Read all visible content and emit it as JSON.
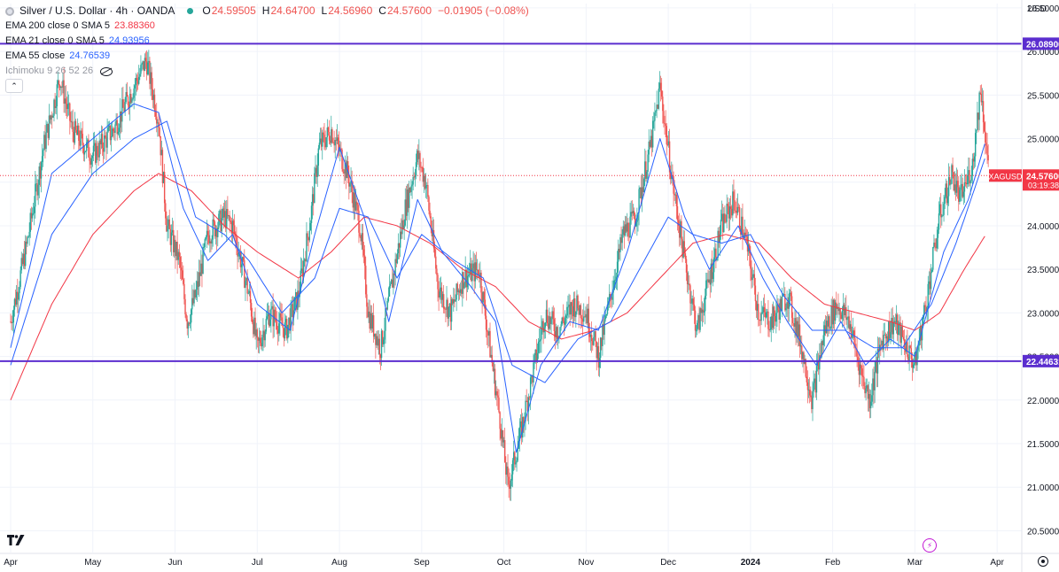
{
  "header": {
    "title": "Silver / U.S. Dollar · 4h · OANDA",
    "ohlc": [
      {
        "k": "O",
        "v": "24.59505"
      },
      {
        "k": "H",
        "v": "24.64700"
      },
      {
        "k": "L",
        "v": "24.56960"
      },
      {
        "k": "C",
        "v": "24.57600"
      },
      {
        "k": "",
        "v": "−0.01905 (−0.08%)"
      }
    ],
    "indicators": [
      {
        "label": "EMA 200 close 0 SMA 5",
        "value": "23.88360",
        "color": "#f23645"
      },
      {
        "label": "EMA 21 close 0 SMA 5",
        "value": "24.93956",
        "color": "#2962ff"
      },
      {
        "label": "EMA 55 close",
        "value": "24.76539",
        "color": "#2962ff"
      }
    ],
    "ichimoku": "Ichimoku 9 26 52 26",
    "collapse_icon": "chevron-up-icon"
  },
  "currency": "USD",
  "colors": {
    "up": "#26a69a",
    "down": "#ef5350",
    "ema200": "#f23645",
    "ema_fast": "#2962ff",
    "hline": "#5b2ecf",
    "price_tag": "#f23645",
    "grid": "#f0f3fa"
  },
  "chart_data": {
    "type": "candlestick",
    "symbol": "XAGUSD",
    "interval": "4h",
    "ylim": [
      20.25,
      26.55
    ],
    "y_ticks": [
      "26.50000",
      "26.00000",
      "25.50000",
      "25.00000",
      "24.50000",
      "24.00000",
      "23.50000",
      "23.00000",
      "22.50000",
      "22.00000",
      "21.50000",
      "21.00000",
      "20.50000"
    ],
    "x_ticks": [
      "Apr",
      "May",
      "Jun",
      "Jul",
      "Aug",
      "Sep",
      "Oct",
      "Nov",
      "Dec",
      "2024",
      "Feb",
      "Mar",
      "Apr"
    ],
    "horizontal_lines": [
      {
        "value": 26.089,
        "label": "26.08900"
      },
      {
        "value": 22.44631,
        "label": "22.44631"
      }
    ],
    "last_price": {
      "value": 24.576,
      "symbol_label": "XAGUSD",
      "price_label": "24.57600",
      "countdown": "03:19:38"
    },
    "close_path": [
      [
        0,
        22.9
      ],
      [
        0.4,
        23.8
      ],
      [
        0.8,
        24.9
      ],
      [
        1.2,
        25.7
      ],
      [
        1.5,
        25.1
      ],
      [
        2.0,
        24.8
      ],
      [
        2.5,
        25.1
      ],
      [
        3.0,
        25.6
      ],
      [
        3.3,
        25.9
      ],
      [
        3.6,
        25.2
      ],
      [
        3.8,
        24.0
      ],
      [
        4.1,
        23.6
      ],
      [
        4.3,
        22.9
      ],
      [
        4.5,
        23.2
      ],
      [
        4.8,
        23.9
      ],
      [
        5.2,
        24.1
      ],
      [
        5.4,
        24.0
      ],
      [
        5.6,
        23.6
      ],
      [
        5.8,
        23.2
      ],
      [
        6.0,
        22.6
      ],
      [
        6.3,
        23.0
      ],
      [
        6.7,
        22.8
      ],
      [
        7.0,
        23.2
      ],
      [
        7.3,
        24.1
      ],
      [
        7.5,
        24.9
      ],
      [
        7.8,
        25.1
      ],
      [
        8.2,
        24.6
      ],
      [
        8.5,
        24.0
      ],
      [
        8.7,
        23.0
      ],
      [
        9.0,
        22.6
      ],
      [
        9.3,
        23.4
      ],
      [
        9.6,
        24.2
      ],
      [
        9.9,
        24.8
      ],
      [
        10.1,
        24.5
      ],
      [
        10.4,
        23.3
      ],
      [
        10.7,
        23.0
      ],
      [
        11.0,
        23.4
      ],
      [
        11.4,
        23.5
      ],
      [
        11.6,
        22.8
      ],
      [
        11.9,
        21.8
      ],
      [
        12.1,
        21.0
      ],
      [
        12.4,
        21.6
      ],
      [
        12.7,
        22.3
      ],
      [
        13.0,
        23.0
      ],
      [
        13.3,
        22.8
      ],
      [
        13.7,
        23.1
      ],
      [
        14.0,
        23.0
      ],
      [
        14.3,
        22.5
      ],
      [
        14.6,
        23.2
      ],
      [
        14.9,
        23.9
      ],
      [
        15.2,
        24.1
      ],
      [
        15.6,
        25.0
      ],
      [
        15.8,
        25.6
      ],
      [
        16.1,
        24.5
      ],
      [
        16.4,
        23.6
      ],
      [
        16.7,
        22.8
      ],
      [
        17.0,
        23.4
      ],
      [
        17.3,
        24.0
      ],
      [
        17.6,
        24.3
      ],
      [
        17.9,
        23.8
      ],
      [
        18.2,
        23.0
      ],
      [
        18.5,
        22.9
      ],
      [
        18.9,
        23.2
      ],
      [
        19.2,
        22.7
      ],
      [
        19.5,
        22.0
      ],
      [
        19.8,
        22.8
      ],
      [
        20.1,
        23.1
      ],
      [
        20.4,
        22.9
      ],
      [
        20.7,
        22.3
      ],
      [
        20.9,
        22.0
      ],
      [
        21.2,
        22.7
      ],
      [
        21.5,
        22.9
      ],
      [
        21.8,
        22.6
      ],
      [
        22.0,
        22.4
      ],
      [
        22.3,
        23.2
      ],
      [
        22.6,
        24.1
      ],
      [
        22.9,
        24.6
      ],
      [
        23.1,
        24.3
      ],
      [
        23.4,
        24.7
      ],
      [
        23.6,
        25.6
      ],
      [
        23.8,
        24.6
      ]
    ],
    "ema21_path": [
      [
        0,
        22.6
      ],
      [
        1.0,
        24.6
      ],
      [
        2.0,
        25.0
      ],
      [
        3.0,
        25.4
      ],
      [
        3.6,
        25.3
      ],
      [
        4.2,
        24.2
      ],
      [
        4.8,
        23.6
      ],
      [
        5.4,
        23.9
      ],
      [
        6.0,
        23.1
      ],
      [
        6.8,
        22.8
      ],
      [
        7.4,
        23.9
      ],
      [
        8.0,
        24.9
      ],
      [
        8.6,
        24.1
      ],
      [
        9.2,
        22.9
      ],
      [
        9.9,
        24.3
      ],
      [
        10.5,
        23.7
      ],
      [
        11.2,
        23.3
      ],
      [
        11.8,
        22.9
      ],
      [
        12.3,
        21.4
      ],
      [
        12.9,
        22.4
      ],
      [
        13.6,
        22.9
      ],
      [
        14.3,
        22.8
      ],
      [
        15.0,
        23.7
      ],
      [
        15.8,
        25.0
      ],
      [
        16.4,
        24.1
      ],
      [
        17.0,
        23.5
      ],
      [
        17.7,
        24.0
      ],
      [
        18.3,
        23.4
      ],
      [
        18.9,
        22.9
      ],
      [
        19.6,
        22.4
      ],
      [
        20.2,
        22.9
      ],
      [
        20.8,
        22.4
      ],
      [
        21.4,
        22.7
      ],
      [
        22.0,
        22.5
      ],
      [
        22.7,
        23.7
      ],
      [
        23.3,
        24.3
      ],
      [
        23.7,
        24.94
      ]
    ],
    "ema55_path": [
      [
        0,
        22.4
      ],
      [
        1.0,
        23.9
      ],
      [
        2.0,
        24.6
      ],
      [
        3.0,
        25.0
      ],
      [
        3.8,
        25.2
      ],
      [
        4.5,
        24.1
      ],
      [
        5.2,
        23.9
      ],
      [
        5.8,
        23.6
      ],
      [
        6.6,
        23.0
      ],
      [
        7.4,
        23.4
      ],
      [
        8.0,
        24.2
      ],
      [
        8.7,
        24.1
      ],
      [
        9.4,
        23.4
      ],
      [
        10.0,
        23.9
      ],
      [
        10.8,
        23.6
      ],
      [
        11.5,
        23.4
      ],
      [
        12.2,
        22.4
      ],
      [
        13.0,
        22.2
      ],
      [
        13.8,
        22.7
      ],
      [
        14.6,
        22.9
      ],
      [
        15.3,
        23.5
      ],
      [
        16.0,
        24.1
      ],
      [
        16.6,
        23.9
      ],
      [
        17.3,
        23.8
      ],
      [
        18.0,
        23.9
      ],
      [
        18.8,
        23.2
      ],
      [
        19.5,
        22.8
      ],
      [
        20.3,
        22.8
      ],
      [
        21.0,
        22.6
      ],
      [
        21.7,
        22.6
      ],
      [
        22.4,
        23.1
      ],
      [
        23.0,
        23.8
      ],
      [
        23.7,
        24.77
      ]
    ],
    "ema200_path": [
      [
        0,
        22.0
      ],
      [
        1.0,
        23.1
      ],
      [
        2.0,
        23.9
      ],
      [
        3.0,
        24.4
      ],
      [
        3.6,
        24.6
      ],
      [
        4.4,
        24.4
      ],
      [
        5.2,
        24.0
      ],
      [
        6.0,
        23.7
      ],
      [
        7.0,
        23.4
      ],
      [
        7.8,
        23.7
      ],
      [
        8.6,
        24.1
      ],
      [
        9.4,
        24.0
      ],
      [
        10.2,
        23.8
      ],
      [
        11.0,
        23.5
      ],
      [
        11.8,
        23.3
      ],
      [
        12.6,
        22.9
      ],
      [
        13.4,
        22.7
      ],
      [
        14.2,
        22.8
      ],
      [
        15.0,
        23.0
      ],
      [
        15.8,
        23.4
      ],
      [
        16.6,
        23.8
      ],
      [
        17.4,
        23.9
      ],
      [
        18.2,
        23.8
      ],
      [
        19.0,
        23.4
      ],
      [
        19.8,
        23.1
      ],
      [
        20.6,
        23.0
      ],
      [
        21.4,
        22.9
      ],
      [
        22.0,
        22.8
      ],
      [
        22.6,
        23.0
      ],
      [
        23.2,
        23.5
      ],
      [
        23.7,
        23.88
      ]
    ],
    "x_domain": [
      0,
      24.6
    ]
  }
}
